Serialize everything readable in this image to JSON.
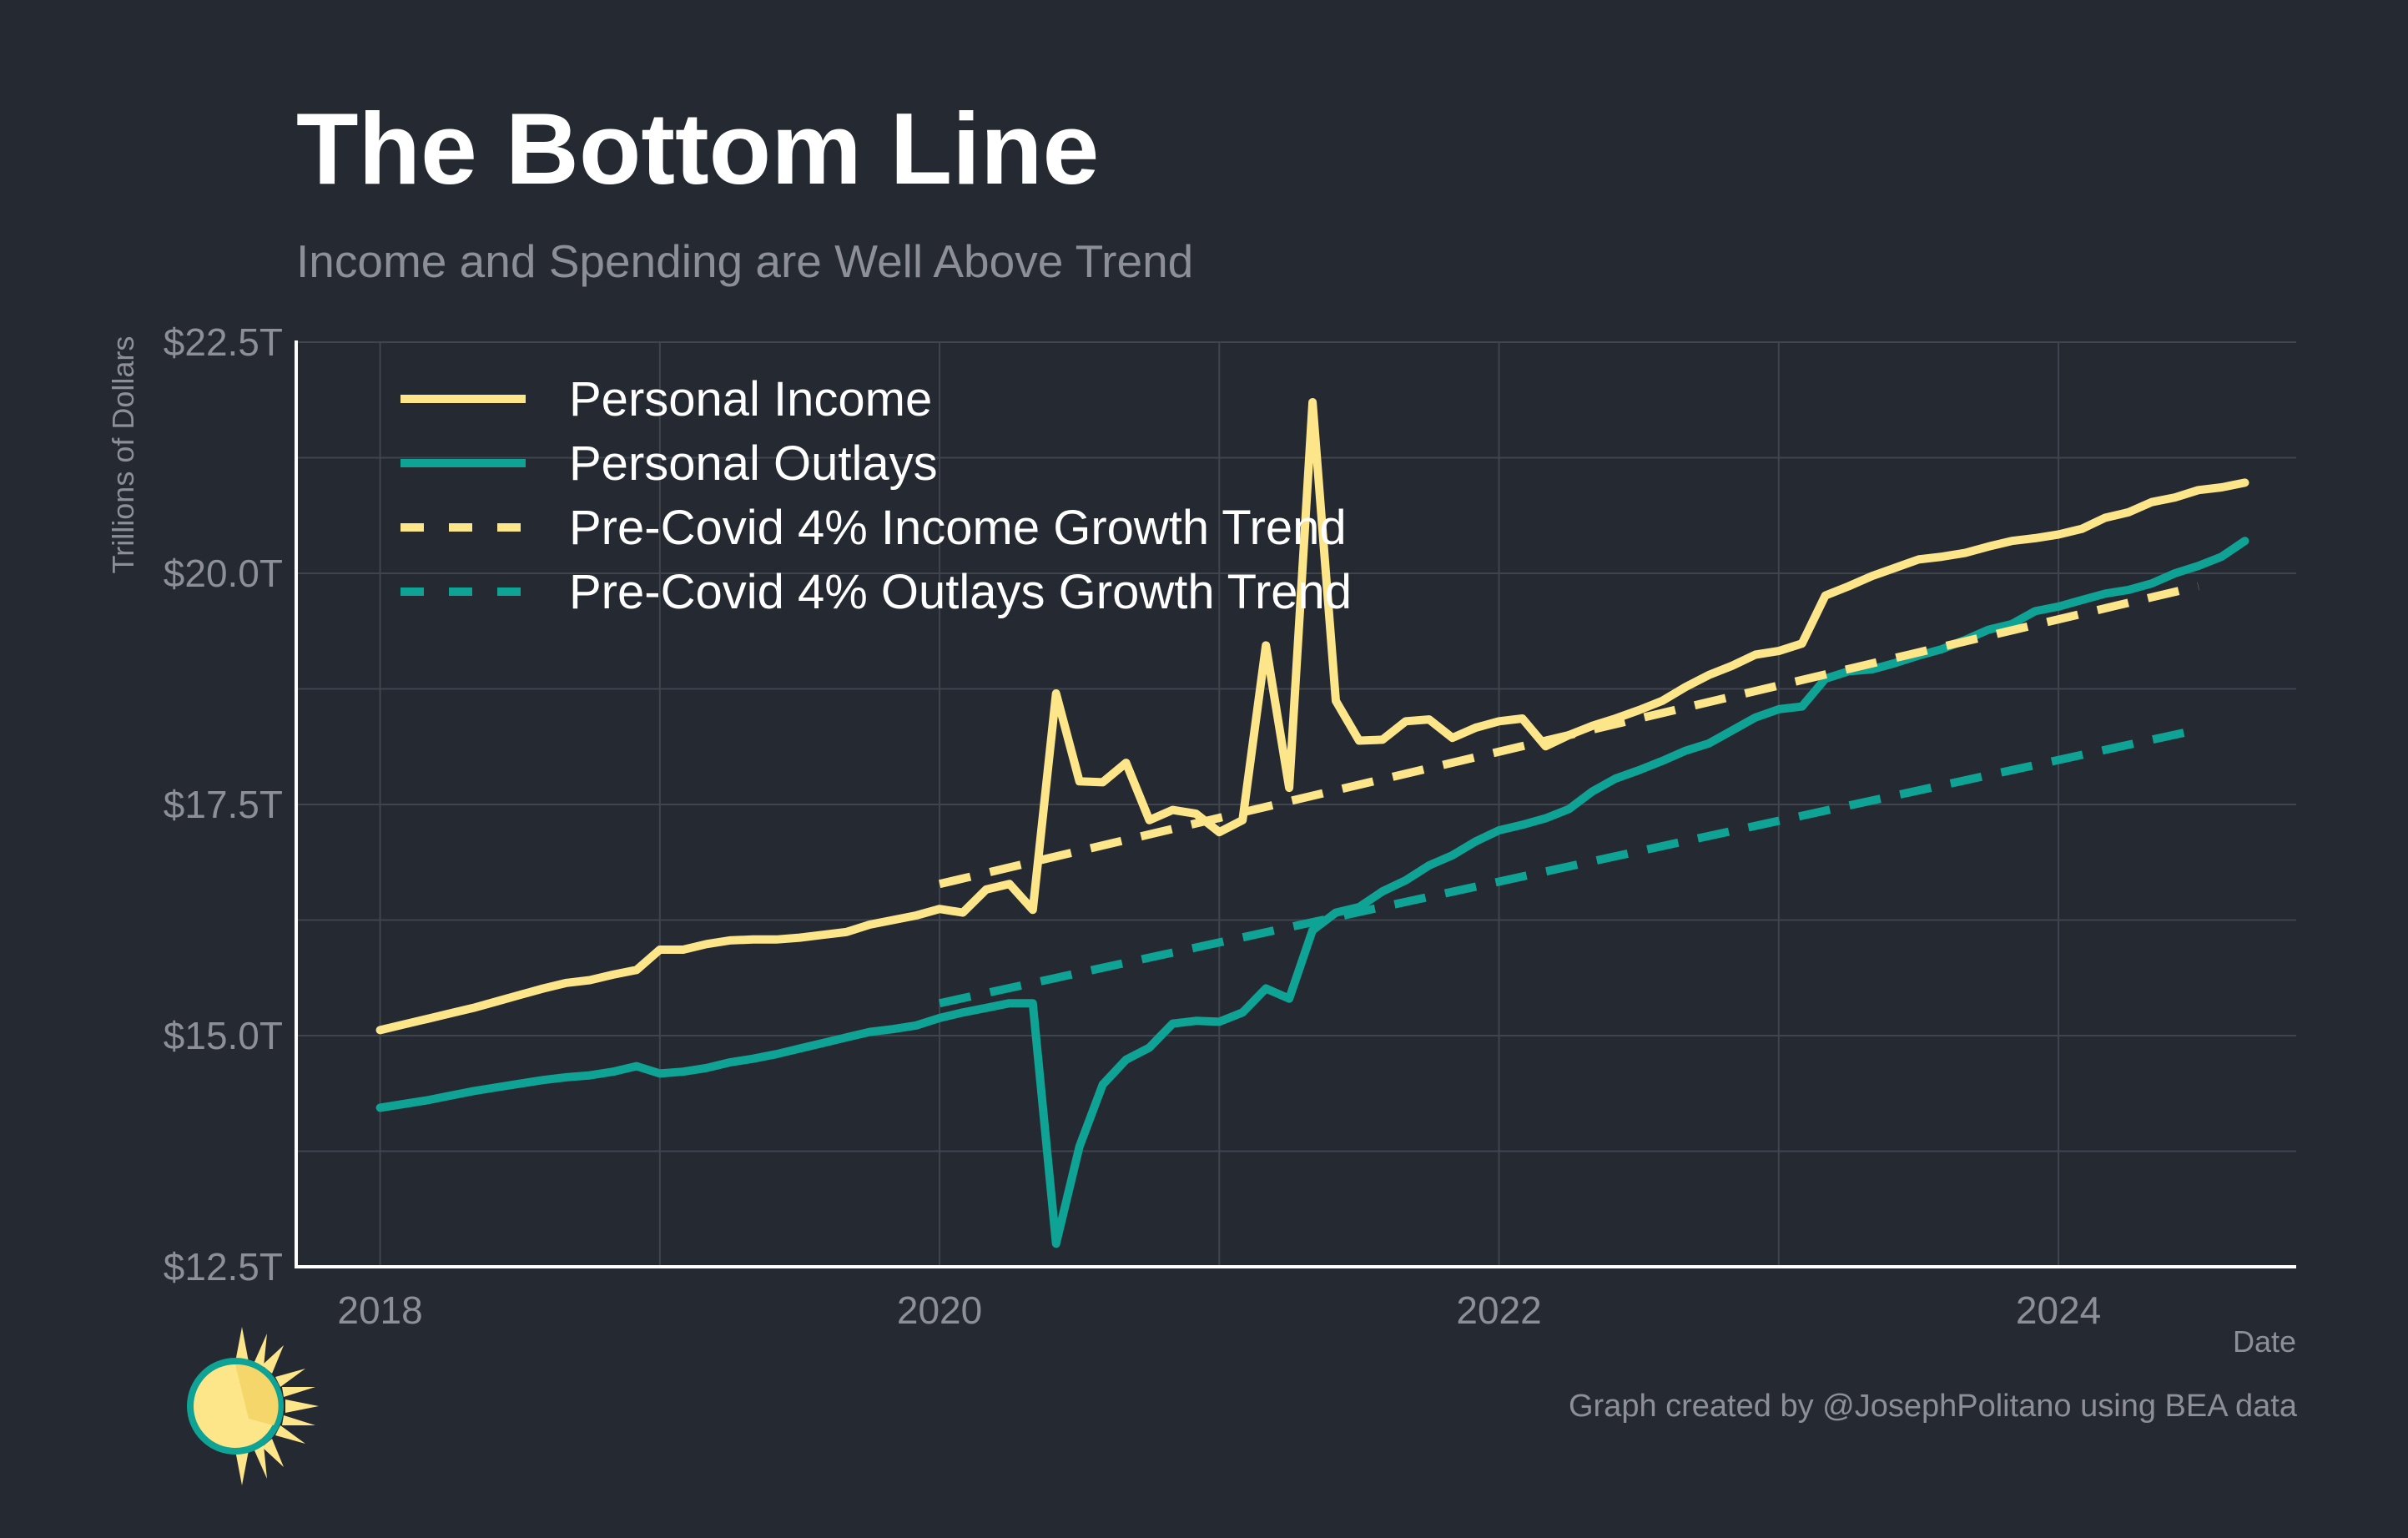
{
  "title": "The Bottom Line",
  "subtitle": "Income and Spending are Well Above Trend",
  "credit": "Graph created by @JosephPolitano using BEA data",
  "colors": {
    "background": "#252932",
    "income": "#fde68a",
    "outlays": "#0ea394",
    "grid": "#40444d",
    "axis": "#ffffff"
  },
  "chart_data": {
    "type": "line",
    "ylabel": "Trillions of Dollars",
    "xlabel": "Date",
    "xlim": [
      2017.7,
      2024.85
    ],
    "ylim": [
      12.5,
      22.5
    ],
    "x_ticks": [
      2018,
      2020,
      2022,
      2024
    ],
    "x_tick_labels": [
      "2018",
      "2020",
      "2022",
      "2024"
    ],
    "y_ticks": [
      12.5,
      15.0,
      17.5,
      20.0,
      22.5
    ],
    "y_tick_labels": [
      "$12.5T",
      "$15.0T",
      "$17.5T",
      "$20.0T",
      "$22.5T"
    ],
    "y_minor_gridlines": [
      13.75,
      16.25,
      18.75,
      21.25
    ],
    "grid": true,
    "legend_position": "top-left",
    "series": [
      {
        "name": "Personal Income",
        "style": "solid",
        "color": "#fde68a",
        "start": "2018-01",
        "frequency": "monthly",
        "values": [
          15.06,
          15.12,
          15.18,
          15.24,
          15.3,
          15.37,
          15.44,
          15.51,
          15.57,
          15.6,
          15.66,
          15.71,
          15.93,
          15.93,
          15.99,
          16.03,
          16.04,
          16.04,
          16.06,
          16.09,
          16.12,
          16.2,
          16.25,
          16.3,
          16.37,
          16.33,
          16.58,
          16.64,
          16.36,
          18.7,
          17.75,
          17.74,
          17.95,
          17.33,
          17.44,
          17.4,
          17.2,
          17.33,
          19.22,
          17.68,
          21.85,
          18.62,
          18.19,
          18.2,
          18.4,
          18.42,
          18.22,
          18.33,
          18.4,
          18.43,
          18.13,
          18.25,
          18.35,
          18.43,
          18.52,
          18.62,
          18.77,
          18.9,
          19.0,
          19.12,
          19.16,
          19.24,
          19.76,
          19.86,
          19.97,
          20.06,
          20.15,
          20.18,
          20.22,
          20.29,
          20.35,
          20.38,
          20.42,
          20.48,
          20.6,
          20.66,
          20.77,
          20.82,
          20.9,
          20.93,
          20.98
        ]
      },
      {
        "name": "Personal Outlays",
        "style": "solid",
        "color": "#0ea394",
        "start": "2018-01",
        "frequency": "monthly",
        "values": [
          14.22,
          14.26,
          14.3,
          14.35,
          14.4,
          14.44,
          14.48,
          14.52,
          14.55,
          14.57,
          14.61,
          14.67,
          14.59,
          14.61,
          14.65,
          14.71,
          14.75,
          14.8,
          14.86,
          14.92,
          14.98,
          15.04,
          15.07,
          15.11,
          15.19,
          15.25,
          15.3,
          15.35,
          15.35,
          12.75,
          13.8,
          14.47,
          14.74,
          14.87,
          15.13,
          15.16,
          15.15,
          15.25,
          15.51,
          15.4,
          16.14,
          16.33,
          16.39,
          16.56,
          16.68,
          16.84,
          16.95,
          17.1,
          17.22,
          17.28,
          17.35,
          17.45,
          17.64,
          17.78,
          17.87,
          17.97,
          18.08,
          18.16,
          18.3,
          18.44,
          18.53,
          18.56,
          18.86,
          18.94,
          18.96,
          19.03,
          19.11,
          19.18,
          19.28,
          19.39,
          19.45,
          19.59,
          19.64,
          19.71,
          19.78,
          19.82,
          19.89,
          20.0,
          20.08,
          20.18,
          20.35
        ]
      },
      {
        "name": "Pre-Covid 4% Income Growth Trend",
        "style": "dashed",
        "color": "#fde68a",
        "x": [
          2020.0,
          2024.5
        ],
        "values": [
          16.64,
          19.86
        ]
      },
      {
        "name": "Pre-Covid 4% Outlays Growth Trend",
        "style": "dashed",
        "color": "#0ea394",
        "x": [
          2020.0,
          2024.5
        ],
        "values": [
          15.35,
          18.31
        ]
      }
    ]
  }
}
